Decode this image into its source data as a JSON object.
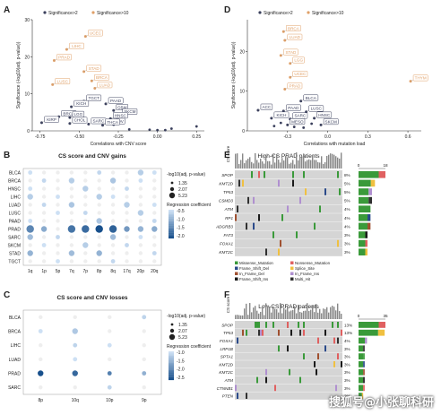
{
  "colors": {
    "sig2": "#3a3f5c",
    "sig10": "#e0a068",
    "bubble_dark": "#1f5b94",
    "bubble_mid": "#5f9bd0",
    "bubble_light": "#c5daf0",
    "grid": "#e6e6e6",
    "oncoprint_bg": "#cfcfcf",
    "missense": "#3a9a3a",
    "frameshift": "#1a1a1a",
    "nonsense": "#e06060",
    "splice": "#f0c040",
    "inframe": "#a05030",
    "multi": "#303030"
  },
  "panel_labels": {
    "A": "A",
    "B": "B",
    "C": "C",
    "D": "D",
    "E": "E",
    "F": "F"
  },
  "legend_sig": {
    "sig2": "Significance>2",
    "sig10": "Significance>10"
  },
  "chart_data": [
    {
      "id": "A",
      "type": "scatter",
      "xlabel": "Correlations with CNV score",
      "ylabel": "Significance (-log10(adj. p-value))",
      "xlim": [
        -0.8,
        0.3
      ],
      "ylim": [
        0,
        30
      ],
      "xticks": [
        "-0.75",
        "-0.50",
        "-0.25",
        "0.00",
        "0.25"
      ],
      "yticks": [
        "0",
        "10",
        "20",
        "30"
      ],
      "labeled_points": [
        {
          "label": "UCEC",
          "x": -0.46,
          "y": 25.5,
          "group": "sig10"
        },
        {
          "label": "LIHC",
          "x": -0.58,
          "y": 22.0,
          "group": "sig10"
        },
        {
          "label": "PRAD",
          "x": -0.66,
          "y": 19.0,
          "group": "sig10"
        },
        {
          "label": "STAD",
          "x": -0.47,
          "y": 16.0,
          "group": "sig10"
        },
        {
          "label": "BRCA",
          "x": -0.42,
          "y": 13.5,
          "group": "sig10"
        },
        {
          "label": "LUSC",
          "x": -0.67,
          "y": 12.5,
          "group": "sig10"
        },
        {
          "label": "LUAD",
          "x": -0.4,
          "y": 11.5,
          "group": "sig10"
        },
        {
          "label": "TGCT",
          "x": -0.47,
          "y": 8.0,
          "group": "sig2"
        },
        {
          "label": "PAAD",
          "x": -0.33,
          "y": 7.3,
          "group": "sig2"
        },
        {
          "label": "KICH",
          "x": -0.55,
          "y": 6.5,
          "group": "sig2"
        },
        {
          "label": "GBM",
          "x": -0.28,
          "y": 5.5,
          "group": "sig2"
        },
        {
          "label": "SKCM",
          "x": -0.24,
          "y": 4.3,
          "group": "sig2"
        },
        {
          "label": "BRCA",
          "x": -0.63,
          "y": 3.8,
          "group": "sig2"
        },
        {
          "label": "LGG",
          "x": -0.56,
          "y": 3.6,
          "group": "sig2"
        },
        {
          "label": "HNSC",
          "x": -0.3,
          "y": 3.3,
          "group": "sig2"
        },
        {
          "label": "KIRP",
          "x": -0.74,
          "y": 2.2,
          "group": "sig2"
        },
        {
          "label": "CHOL",
          "x": -0.56,
          "y": 2.0,
          "group": "sig2"
        },
        {
          "label": "SARC",
          "x": -0.44,
          "y": 1.8,
          "group": "sig2"
        },
        {
          "label": "OV",
          "x": -0.28,
          "y": 1.7,
          "group": "sig2"
        },
        {
          "label": "THCA",
          "x": -0.35,
          "y": 1.5,
          "group": "sig2"
        }
      ],
      "other_points": [
        {
          "x": -0.05,
          "y": 0.3
        },
        {
          "x": 0.0,
          "y": 0.2
        },
        {
          "x": 0.05,
          "y": 0.2
        },
        {
          "x": 0.09,
          "y": 0.6
        },
        {
          "x": 0.25,
          "y": 1.2
        },
        {
          "x": -0.18,
          "y": 0.4
        }
      ]
    },
    {
      "id": "D",
      "type": "scatter",
      "xlabel": "Correlations with mutation load",
      "ylabel": "Significance (-log10(adj. p-value))",
      "xlim": [
        -0.6,
        0.7
      ],
      "ylim": [
        0,
        28
      ],
      "xticks": [
        "-0.3",
        "0.0",
        "0.3",
        "0.6"
      ],
      "yticks": [
        "0",
        "10",
        "20"
      ],
      "labeled_points": [
        {
          "label": "BRCA",
          "x": -0.33,
          "y": 25.0,
          "group": "sig10"
        },
        {
          "label": "LUAD",
          "x": -0.32,
          "y": 22.8,
          "group": "sig10"
        },
        {
          "label": "STAD",
          "x": -0.35,
          "y": 19.0,
          "group": "sig10"
        },
        {
          "label": "LGG",
          "x": -0.28,
          "y": 17.0,
          "group": "sig10"
        },
        {
          "label": "THYM",
          "x": 0.62,
          "y": 12.5,
          "group": "sig10"
        },
        {
          "label": "UCEC",
          "x": -0.28,
          "y": 13.5,
          "group": "sig10"
        },
        {
          "label": "PRAD",
          "x": -0.32,
          "y": 10.5,
          "group": "sig10"
        },
        {
          "label": "BLCA",
          "x": -0.2,
          "y": 7.5,
          "group": "sig2"
        },
        {
          "label": "ACC",
          "x": -0.52,
          "y": 5.2,
          "group": "sig2"
        },
        {
          "label": "PAAD",
          "x": -0.33,
          "y": 5.0,
          "group": "sig2"
        },
        {
          "label": "LUSC",
          "x": -0.16,
          "y": 4.8,
          "group": "sig2"
        },
        {
          "label": "KICH",
          "x": -0.42,
          "y": 3.2,
          "group": "sig2"
        },
        {
          "label": "SARC",
          "x": -0.28,
          "y": 3.0,
          "group": "sig2"
        },
        {
          "label": "HNSC",
          "x": -0.1,
          "y": 3.2,
          "group": "sig2"
        },
        {
          "label": "MESO",
          "x": -0.3,
          "y": 1.5,
          "group": "sig2"
        },
        {
          "label": "SKCM",
          "x": -0.05,
          "y": 1.5,
          "group": "sig2"
        }
      ],
      "other_points": [
        {
          "x": -0.4,
          "y": 1.2
        },
        {
          "x": -0.25,
          "y": 1.0
        },
        {
          "x": -0.18,
          "y": 0.8
        },
        {
          "x": -0.35,
          "y": 2.0
        },
        {
          "x": -0.12,
          "y": 1.8
        }
      ]
    },
    {
      "id": "B",
      "type": "heatmap",
      "title": "CS score and CNV gains",
      "rows": [
        "BLCA",
        "BRCA",
        "HNSC",
        "LIHC",
        "LUAD",
        "LUSC",
        "PAAD",
        "PRAD",
        "SARC",
        "SKCM",
        "STAD",
        "TGCT"
      ],
      "cols": [
        "1q",
        "1p",
        "5p",
        "7q",
        "7p",
        "8p",
        "8q",
        "17q",
        "20p",
        "20q"
      ],
      "size_legend_title": "-log10(adj. p-value)",
      "size_legend": [
        "1.35",
        "2.07",
        "5.23"
      ],
      "color_legend_title": "Regression coefficient",
      "color_legend": [
        "-0.5",
        "-1.0",
        "-1.5",
        "-2.0"
      ],
      "cells": [
        {
          "r": 0,
          "c": 0,
          "size": 1,
          "val": -0.6
        },
        {
          "r": 0,
          "c": 5,
          "size": 1,
          "val": -0.7
        },
        {
          "r": 0,
          "c": 8,
          "size": 2,
          "val": -0.8
        },
        {
          "r": 0,
          "c": 9,
          "size": 1,
          "val": -0.6
        },
        {
          "r": 1,
          "c": 1,
          "size": 1,
          "val": -0.7
        },
        {
          "r": 1,
          "c": 3,
          "size": 2,
          "val": -0.8
        },
        {
          "r": 1,
          "c": 6,
          "size": 2,
          "val": -0.9
        },
        {
          "r": 1,
          "c": 8,
          "size": 1,
          "val": -0.6
        },
        {
          "r": 2,
          "c": 0,
          "size": 1,
          "val": -0.6
        },
        {
          "r": 2,
          "c": 4,
          "size": 2,
          "val": -0.8
        },
        {
          "r": 2,
          "c": 7,
          "size": 1,
          "val": -0.7
        },
        {
          "r": 3,
          "c": 0,
          "size": 2,
          "val": -0.8
        },
        {
          "r": 3,
          "c": 2,
          "size": 1,
          "val": -0.6
        },
        {
          "r": 3,
          "c": 5,
          "size": 2,
          "val": -0.8
        },
        {
          "r": 3,
          "c": 6,
          "size": 1,
          "val": -0.6
        },
        {
          "r": 4,
          "c": 1,
          "size": 1,
          "val": -0.7
        },
        {
          "r": 4,
          "c": 3,
          "size": 2,
          "val": -0.9
        },
        {
          "r": 4,
          "c": 7,
          "size": 2,
          "val": -0.8
        },
        {
          "r": 4,
          "c": 9,
          "size": 1,
          "val": -0.6
        },
        {
          "r": 5,
          "c": 2,
          "size": 1,
          "val": -0.6
        },
        {
          "r": 5,
          "c": 4,
          "size": 1,
          "val": -0.7
        },
        {
          "r": 5,
          "c": 8,
          "size": 2,
          "val": -0.8
        },
        {
          "r": 6,
          "c": 0,
          "size": 1,
          "val": -0.6
        },
        {
          "r": 6,
          "c": 5,
          "size": 2,
          "val": -0.9
        },
        {
          "r": 6,
          "c": 9,
          "size": 1,
          "val": -0.7
        },
        {
          "r": 7,
          "c": 0,
          "size": 3,
          "val": -1.6
        },
        {
          "r": 7,
          "c": 1,
          "size": 2,
          "val": -1.2
        },
        {
          "r": 7,
          "c": 3,
          "size": 3,
          "val": -1.8
        },
        {
          "r": 7,
          "c": 4,
          "size": 3,
          "val": -1.9
        },
        {
          "r": 7,
          "c": 5,
          "size": 3,
          "val": -2.2
        },
        {
          "r": 7,
          "c": 6,
          "size": 3,
          "val": -2.0
        },
        {
          "r": 7,
          "c": 7,
          "size": 2,
          "val": -1.4
        },
        {
          "r": 7,
          "c": 8,
          "size": 2,
          "val": -1.1
        },
        {
          "r": 7,
          "c": 9,
          "size": 2,
          "val": -1.2
        },
        {
          "r": 8,
          "c": 0,
          "size": 2,
          "val": -1.0
        },
        {
          "r": 8,
          "c": 2,
          "size": 1,
          "val": -0.7
        },
        {
          "r": 8,
          "c": 6,
          "size": 2,
          "val": -1.0
        },
        {
          "r": 8,
          "c": 8,
          "size": 1,
          "val": -0.6
        },
        {
          "r": 9,
          "c": 1,
          "size": 1,
          "val": -0.6
        },
        {
          "r": 9,
          "c": 4,
          "size": 2,
          "val": -0.8
        },
        {
          "r": 9,
          "c": 7,
          "size": 1,
          "val": -0.7
        },
        {
          "r": 10,
          "c": 0,
          "size": 2,
          "val": -1.1
        },
        {
          "r": 10,
          "c": 3,
          "size": 2,
          "val": -1.0
        },
        {
          "r": 10,
          "c": 5,
          "size": 2,
          "val": -1.1
        },
        {
          "r": 10,
          "c": 9,
          "size": 1,
          "val": -0.7
        },
        {
          "r": 11,
          "c": 2,
          "size": 1,
          "val": -0.6
        },
        {
          "r": 11,
          "c": 6,
          "size": 1,
          "val": -0.7
        }
      ]
    },
    {
      "id": "C",
      "type": "heatmap",
      "title": "CS score and CNV losses",
      "rows": [
        "BLCA",
        "BRCA",
        "LIHC",
        "LUAD",
        "PRAD",
        "SARC"
      ],
      "cols": [
        "8p",
        "10q",
        "10p",
        "9p"
      ],
      "size_legend_title": "-log10(adj. p-value)",
      "size_legend": [
        "1.35",
        "2.07",
        "5.23"
      ],
      "color_legend_title": "Regression coefficient",
      "color_legend": [
        "-1.0",
        "-1.5",
        "-2.0",
        "-2.5"
      ],
      "cells": [
        {
          "r": 0,
          "c": 3,
          "size": 1,
          "val": -1.1
        },
        {
          "r": 1,
          "c": 0,
          "size": 1,
          "val": -1.0
        },
        {
          "r": 1,
          "c": 1,
          "size": 2,
          "val": -1.2
        },
        {
          "r": 2,
          "c": 1,
          "size": 1,
          "val": -1.1
        },
        {
          "r": 2,
          "c": 2,
          "size": 1,
          "val": -1.0
        },
        {
          "r": 3,
          "c": 1,
          "size": 1,
          "val": -1.0
        },
        {
          "r": 4,
          "c": 0,
          "size": 2,
          "val": -2.2
        },
        {
          "r": 4,
          "c": 1,
          "size": 2,
          "val": -2.0
        },
        {
          "r": 4,
          "c": 2,
          "size": 1,
          "val": -1.8
        },
        {
          "r": 4,
          "c": 3,
          "size": 1,
          "val": -1.4
        },
        {
          "r": 5,
          "c": 2,
          "size": 1,
          "val": -1.1
        }
      ]
    },
    {
      "id": "E",
      "type": "table",
      "title": "High-CS PRAD patients",
      "ylabel_top": "CS score",
      "genes": [
        "SPOP",
        "KMT2D",
        "TP53",
        "CSMD3",
        "ATM",
        "RP1",
        "ADGRB3",
        "FAT3",
        "FOXA1",
        "KMT2C"
      ],
      "percents": [
        "8%",
        "5%",
        "5%",
        "5%",
        "4%",
        "4%",
        "4%",
        "3%",
        "3%",
        "3%"
      ],
      "side_axis": [
        "0",
        "18"
      ],
      "side_values": [
        18,
        11,
        9,
        9,
        8,
        8,
        8,
        6,
        6,
        6
      ]
    },
    {
      "id": "F",
      "type": "table",
      "title": "Low-CS PRAD patients",
      "ylabel_top": "CS score",
      "genes": [
        "SPOP",
        "TP53",
        "FOXA1",
        "LRP1B",
        "SPTA1",
        "KMT2D",
        "KMT2C",
        "ATM",
        "CTNNB1",
        "PTEN"
      ],
      "percents": [
        "13%",
        "13%",
        "4%",
        "3%",
        "3%",
        "3%",
        "3%",
        "3%",
        "3%",
        "2%"
      ],
      "side_axis": [
        "0",
        "35"
      ],
      "side_values": [
        35,
        34,
        11,
        8,
        8,
        8,
        8,
        8,
        8,
        6
      ]
    }
  ],
  "mutation_legend": [
    {
      "label": "Missense_Mutation",
      "color": "#3a9a3a"
    },
    {
      "label": "Frame_Shift_Del",
      "color": "#2a4a8a"
    },
    {
      "label": "In_Frame_Del",
      "color": "#a05030"
    },
    {
      "label": "Frame_Shift_Ins",
      "color": "#1a1a1a"
    },
    {
      "label": "Nonsense_Mutation",
      "color": "#e06060"
    },
    {
      "label": "Splice_Site",
      "color": "#f0c040"
    },
    {
      "label": "In_Frame_Ins",
      "color": "#b090d0"
    },
    {
      "label": "Multi_Hit",
      "color": "#303030"
    }
  ],
  "watermark": "搜狐号@小张聊科研"
}
